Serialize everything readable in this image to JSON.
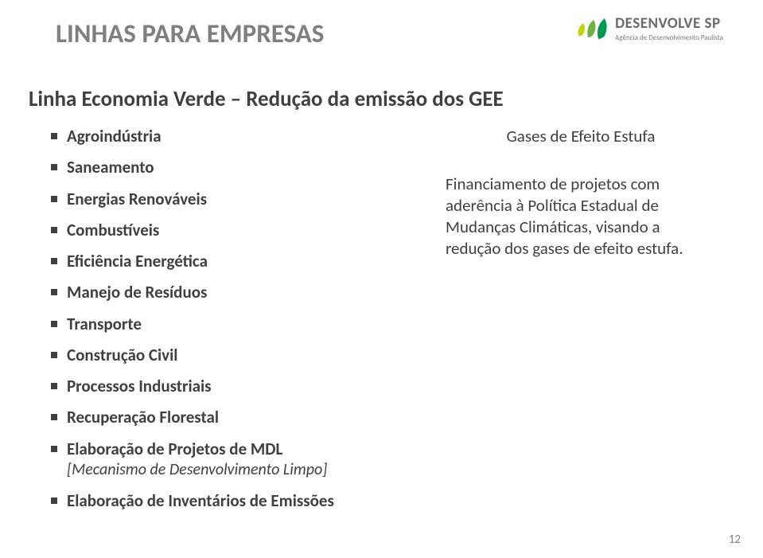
{
  "logo": {
    "name": "DESENVOLVE SP",
    "tagline": "Agência de Desenvolvimento Paulista",
    "leaf_colors": [
      "#c2d500",
      "#6cb33f",
      "#009a4e"
    ]
  },
  "title": "LINHAS PARA EMPRESAS",
  "subtitle": "Linha Economia Verde – Redução da emissão dos GEE",
  "left": {
    "items": [
      {
        "text": "Agroindústria"
      },
      {
        "text": "Saneamento"
      },
      {
        "text": "Energias Renováveis"
      },
      {
        "text": "Combustíveis"
      },
      {
        "text": "Eficiência Energética"
      },
      {
        "text": "Manejo de Resíduos"
      },
      {
        "text": "Transporte"
      },
      {
        "text": "Construção Civil"
      },
      {
        "text": "Processos Industriais"
      },
      {
        "text": "Recuperação Florestal"
      },
      {
        "text": "Elaboração de Projetos de MDL",
        "sub": "[Mecanismo de Desenvolvimento Limpo]"
      },
      {
        "text": "Elaboração de Inventários de Emissões"
      }
    ]
  },
  "right": {
    "heading": "Gases de Efeito Estufa",
    "body": "Financiamento de projetos com aderência à Política Estadual de Mudanças Climáticas, visando a redução dos gases de efeito estufa."
  },
  "page_number": "12",
  "colors": {
    "title_gray": "#7f7f7f",
    "body_gray": "#404040",
    "pagenum_gray": "#808080",
    "background": "#ffffff"
  }
}
